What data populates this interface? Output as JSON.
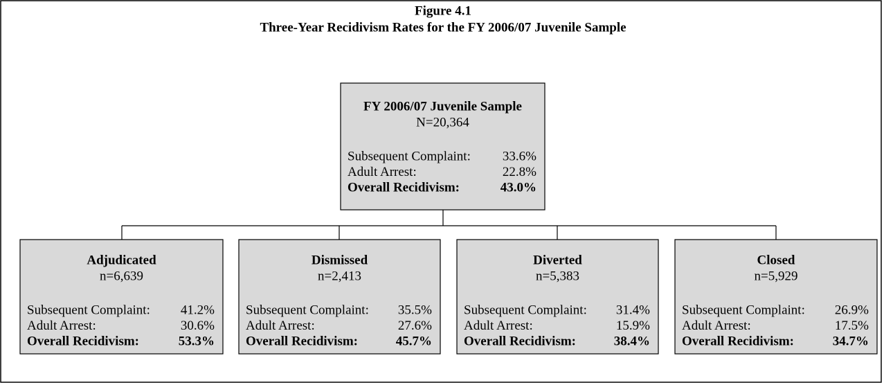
{
  "title": "Figure 4.1",
  "subtitle": "Three-Year Recidivism Rates for the FY 2006/07 Juvenile Sample",
  "nodes": [
    {
      "label": "FY 2006/07 Juvenile Sample",
      "count": "N=20,364",
      "rows": [
        {
          "label": "Subsequent Complaint:",
          "value": "33.6%"
        },
        {
          "label": "Adult Arrest:",
          "value": "22.8%"
        },
        {
          "label": "Overall Recidivism:",
          "value": "43.0%"
        }
      ]
    },
    {
      "label": "Adjudicated",
      "count": "n=6,639",
      "rows": [
        {
          "label": "Subsequent Complaint:",
          "value": "41.2%"
        },
        {
          "label": "Adult Arrest:",
          "value": "30.6%"
        },
        {
          "label": "Overall Recidivism:",
          "value": "53.3%"
        }
      ]
    },
    {
      "label": "Dismissed",
      "count": "n=2,413",
      "rows": [
        {
          "label": "Subsequent Complaint:",
          "value": "35.5%"
        },
        {
          "label": "Adult Arrest:",
          "value": "27.6%"
        },
        {
          "label": "Overall Recidivism:",
          "value": "45.7%"
        }
      ]
    },
    {
      "label": "Diverted",
      "count": "n=5,383",
      "rows": [
        {
          "label": "Subsequent Complaint:",
          "value": "31.4%"
        },
        {
          "label": "Adult Arrest:",
          "value": "15.9%"
        },
        {
          "label": "Overall Recidivism:",
          "value": "38.4%"
        }
      ]
    },
    {
      "label": "Closed",
      "count": "n=5,929",
      "rows": [
        {
          "label": "Subsequent Complaint:",
          "value": "26.9%"
        },
        {
          "label": "Adult Arrest:",
          "value": "17.5%"
        },
        {
          "label": "Overall Recidivism:",
          "value": "34.7%"
        }
      ]
    }
  ]
}
